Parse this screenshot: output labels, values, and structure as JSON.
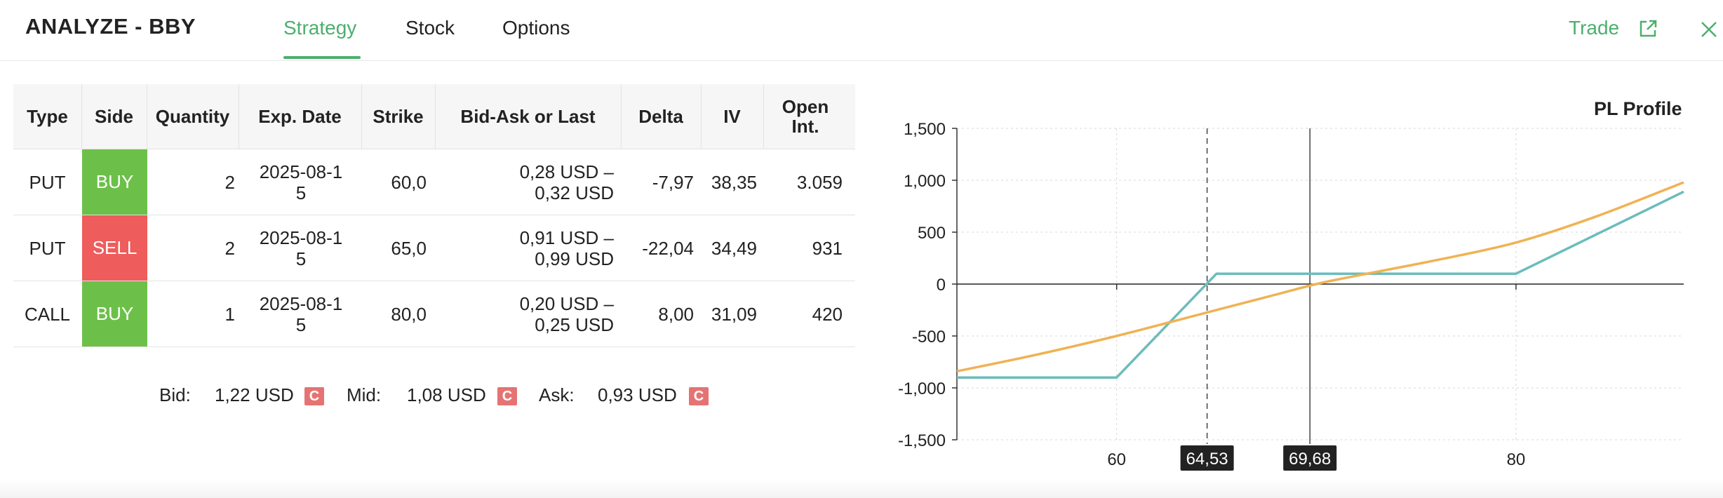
{
  "header": {
    "title": "ANALYZE - BBY",
    "tabs": [
      {
        "label": "Strategy",
        "active": true
      },
      {
        "label": "Stock",
        "active": false
      },
      {
        "label": "Options",
        "active": false
      }
    ],
    "trade_label": "Trade",
    "accent_color": "#4caf6d"
  },
  "table": {
    "columns": [
      "Type",
      "Side",
      "Quantity",
      "Exp. Date",
      "Strike",
      "Bid-Ask or Last",
      "Delta",
      "IV",
      "Open Int."
    ],
    "rows": [
      {
        "type": "PUT",
        "side": "BUY",
        "quantity": "2",
        "exp_date": "2025-08-15",
        "strike": "60,0",
        "bid_ask_1": "0,28 USD –",
        "bid_ask_2": "0,32 USD",
        "delta": "-7,97",
        "iv": "38,35",
        "open_int": "3.059"
      },
      {
        "type": "PUT",
        "side": "SELL",
        "quantity": "2",
        "exp_date": "2025-08-15",
        "strike": "65,0",
        "bid_ask_1": "0,91 USD –",
        "bid_ask_2": "0,99 USD",
        "delta": "-22,04",
        "iv": "34,49",
        "open_int": "931"
      },
      {
        "type": "CALL",
        "side": "BUY",
        "quantity": "1",
        "exp_date": "2025-08-15",
        "strike": "80,0",
        "bid_ask_1": "0,20 USD –",
        "bid_ask_2": "0,25 USD",
        "delta": "8,00",
        "iv": "31,09",
        "open_int": "420"
      }
    ],
    "side_colors": {
      "BUY": "#6cc04a",
      "SELL": "#ee5c5c"
    }
  },
  "summary": {
    "bid_label": "Bid:",
    "bid_value": "1,22 USD",
    "mid_label": "Mid:",
    "mid_value": "1,08 USD",
    "ask_label": "Ask:",
    "ask_value": "0,93 USD",
    "badge": "C"
  },
  "chart_data": {
    "type": "line",
    "title": "PL Profile",
    "xlabel": "",
    "ylabel": "",
    "xlim": [
      52,
      88.4
    ],
    "ylim": [
      -1500,
      1500
    ],
    "x_ticks": [
      60,
      80
    ],
    "y_ticks": [
      1500,
      1000,
      500,
      0,
      -500,
      -1000,
      -1500
    ],
    "y_tick_labels": [
      "1,500",
      "1,000",
      "500",
      "0",
      "-500",
      "-1,000",
      "-1,500"
    ],
    "x_tick_labels": [
      "60",
      "80"
    ],
    "markers": [
      {
        "x": 64.53,
        "label": "64,53",
        "style": "dashed"
      },
      {
        "x": 69.68,
        "label": "69,68",
        "style": "solid"
      }
    ],
    "grid": true,
    "series": [
      {
        "color": "#6bbcbc",
        "x": [
          52,
          60,
          65,
          80,
          88.4
        ],
        "y": [
          -900,
          -900,
          100,
          100,
          890
        ]
      },
      {
        "color": "#f0b254",
        "x": [
          52,
          56,
          60,
          64,
          68,
          70,
          72,
          76,
          80,
          84,
          88.4
        ],
        "y": [
          -840,
          -680,
          -500,
          -300,
          -100,
          0,
          80,
          230,
          400,
          650,
          980
        ]
      }
    ]
  }
}
